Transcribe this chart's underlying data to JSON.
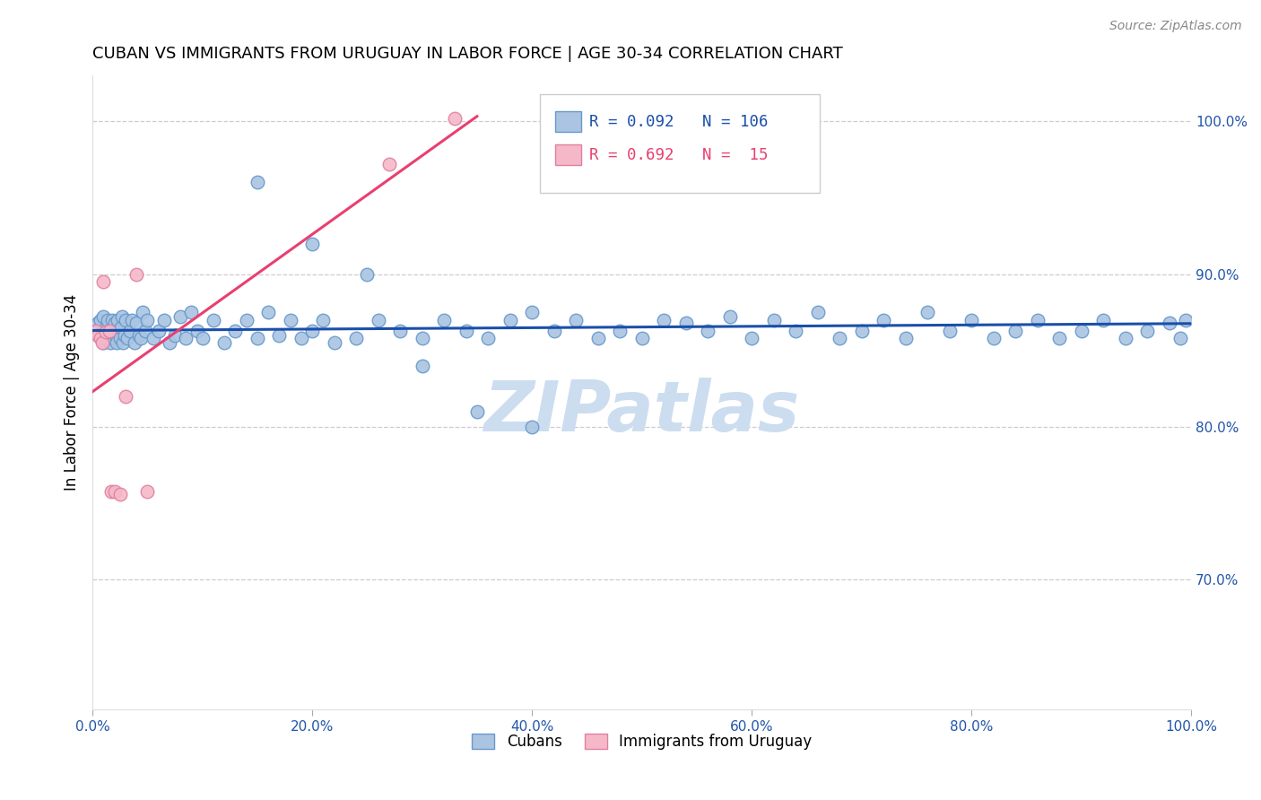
{
  "title": "CUBAN VS IMMIGRANTS FROM URUGUAY IN LABOR FORCE | AGE 30-34 CORRELATION CHART",
  "source": "Source: ZipAtlas.com",
  "ylabel": "In Labor Force | Age 30-34",
  "xlim": [
    0.0,
    1.0
  ],
  "ylim": [
    0.615,
    1.03
  ],
  "right_yticks": [
    1.0,
    0.9,
    0.8,
    0.7
  ],
  "right_yticklabels": [
    "100.0%",
    "90.0%",
    "80.0%",
    "70.0%"
  ],
  "bottom_xticks": [
    0.0,
    0.2,
    0.4,
    0.6,
    0.8,
    1.0
  ],
  "bottom_xticklabels": [
    "0.0%",
    "20.0%",
    "40.0%",
    "60.0%",
    "80.0%",
    "100.0%"
  ],
  "cuban_R": "0.092",
  "cuban_N": "106",
  "uruguay_R": "0.692",
  "uruguay_N": "15",
  "legend_color_cuban": "#aac4e2",
  "legend_color_uruguay": "#f5b8c8",
  "line_color_cuban": "#1a4faa",
  "line_color_uruguay": "#e84070",
  "scatter_color_cuban": "#aac4e2",
  "scatter_color_uruguay": "#f5b8c8",
  "scatter_edge_cuban": "#6699cc",
  "scatter_edge_uruguay": "#e080a0",
  "watermark": "ZIPatlas",
  "watermark_color": "#ccddf0",
  "grid_color": "#cccccc",
  "cuban_x": [
    0.003,
    0.005,
    0.006,
    0.007,
    0.008,
    0.009,
    0.01,
    0.01,
    0.011,
    0.012,
    0.013,
    0.014,
    0.015,
    0.016,
    0.017,
    0.018,
    0.019,
    0.02,
    0.021,
    0.022,
    0.023,
    0.024,
    0.025,
    0.026,
    0.027,
    0.028,
    0.029,
    0.03,
    0.032,
    0.034,
    0.036,
    0.038,
    0.04,
    0.042,
    0.044,
    0.046,
    0.048,
    0.05,
    0.055,
    0.06,
    0.065,
    0.07,
    0.075,
    0.08,
    0.085,
    0.09,
    0.095,
    0.1,
    0.11,
    0.12,
    0.13,
    0.14,
    0.15,
    0.16,
    0.17,
    0.18,
    0.19,
    0.2,
    0.21,
    0.22,
    0.24,
    0.26,
    0.28,
    0.3,
    0.32,
    0.34,
    0.36,
    0.38,
    0.4,
    0.42,
    0.44,
    0.46,
    0.48,
    0.5,
    0.52,
    0.54,
    0.56,
    0.58,
    0.6,
    0.62,
    0.64,
    0.66,
    0.68,
    0.7,
    0.72,
    0.74,
    0.76,
    0.78,
    0.8,
    0.82,
    0.84,
    0.86,
    0.88,
    0.9,
    0.92,
    0.94,
    0.96,
    0.98,
    0.99,
    0.995,
    0.15,
    0.2,
    0.25,
    0.3,
    0.35,
    0.4
  ],
  "cuban_y": [
    0.863,
    0.868,
    0.86,
    0.87,
    0.862,
    0.858,
    0.872,
    0.855,
    0.863,
    0.86,
    0.866,
    0.87,
    0.858,
    0.855,
    0.863,
    0.87,
    0.858,
    0.868,
    0.86,
    0.855,
    0.87,
    0.863,
    0.858,
    0.865,
    0.872,
    0.855,
    0.86,
    0.87,
    0.858,
    0.863,
    0.87,
    0.855,
    0.868,
    0.86,
    0.858,
    0.875,
    0.863,
    0.87,
    0.858,
    0.863,
    0.87,
    0.855,
    0.86,
    0.872,
    0.858,
    0.875,
    0.863,
    0.858,
    0.87,
    0.855,
    0.863,
    0.87,
    0.858,
    0.875,
    0.86,
    0.87,
    0.858,
    0.863,
    0.87,
    0.855,
    0.858,
    0.87,
    0.863,
    0.858,
    0.87,
    0.863,
    0.858,
    0.87,
    0.875,
    0.863,
    0.87,
    0.858,
    0.863,
    0.858,
    0.87,
    0.868,
    0.863,
    0.872,
    0.858,
    0.87,
    0.863,
    0.875,
    0.858,
    0.863,
    0.87,
    0.858,
    0.875,
    0.863,
    0.87,
    0.858,
    0.863,
    0.87,
    0.858,
    0.863,
    0.87,
    0.858,
    0.863,
    0.868,
    0.858,
    0.87,
    0.96,
    0.92,
    0.9,
    0.84,
    0.81,
    0.8
  ],
  "uruguay_x": [
    0.003,
    0.005,
    0.007,
    0.009,
    0.01,
    0.012,
    0.015,
    0.017,
    0.02,
    0.025,
    0.03,
    0.04,
    0.05,
    0.27,
    0.33
  ],
  "uruguay_y": [
    0.863,
    0.86,
    0.858,
    0.855,
    0.895,
    0.862,
    0.863,
    0.758,
    0.758,
    0.756,
    0.82,
    0.9,
    0.758,
    0.972,
    1.002
  ]
}
